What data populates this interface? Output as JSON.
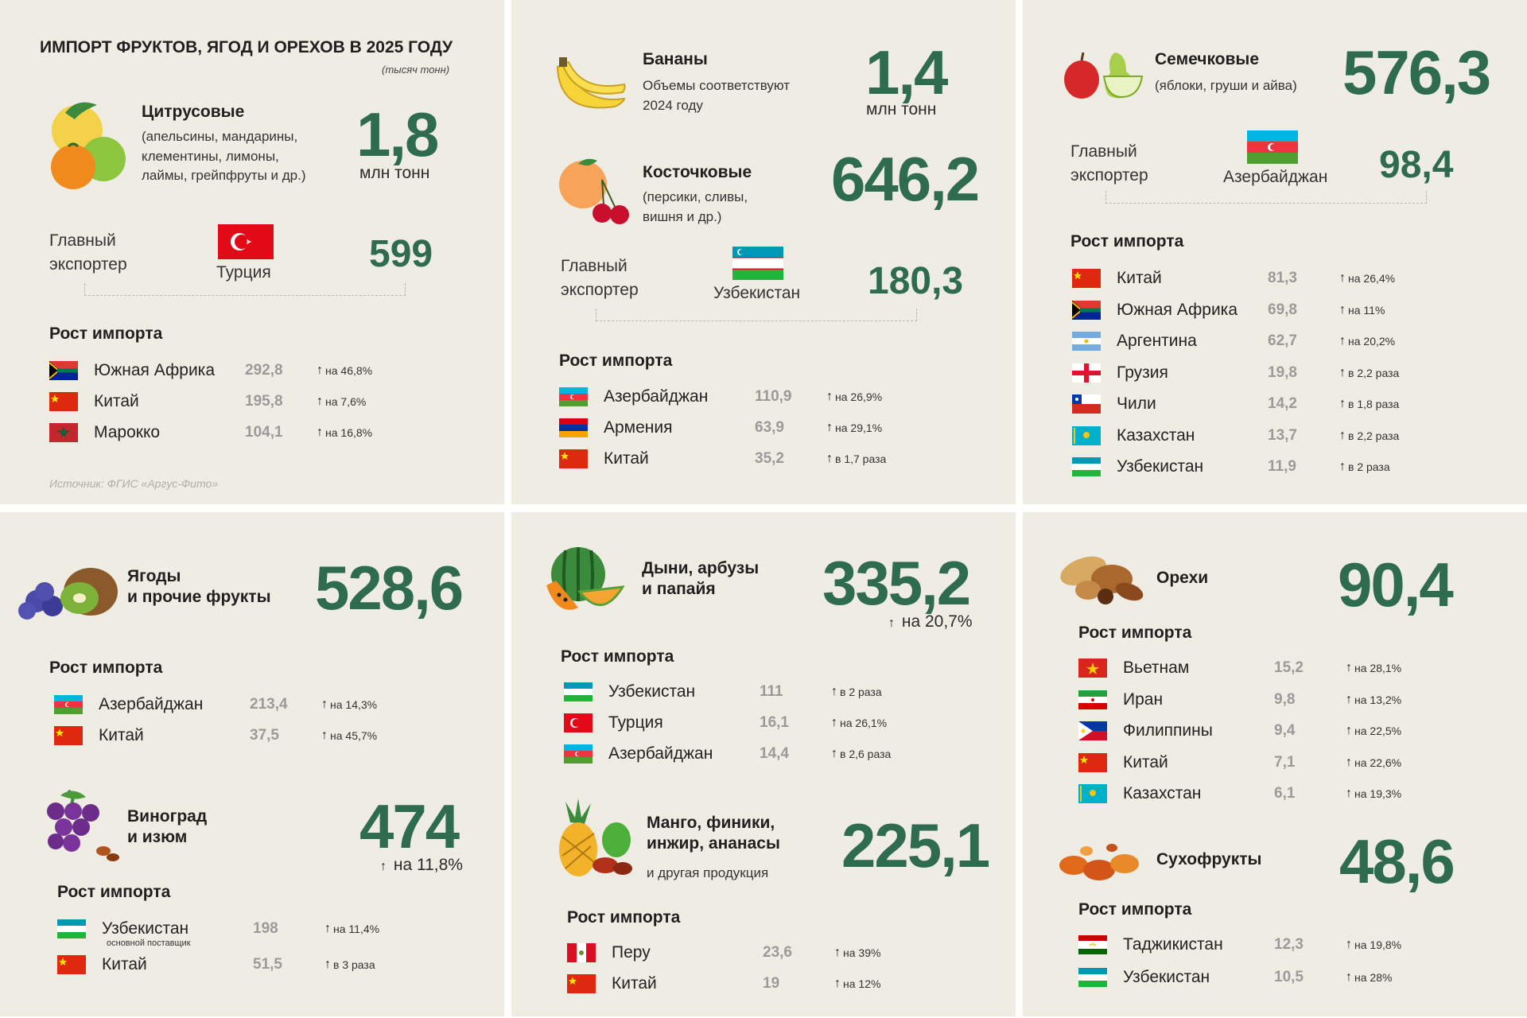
{
  "main_title": "ИМПОРТ ФРУКТОВ, ЯГОД И ОРЕХОВ В 2025 ГОДУ",
  "units_note": "(тысяч тонн)",
  "source": "Источник: ФГИС «Аргус-Фито»",
  "exporter_label_1": "Главный",
  "exporter_label_2": "экспортер",
  "growth_label": "Рост импорта",
  "colors": {
    "accent": "#2e6b4f",
    "panel": "#efece3",
    "muted": "#9a9a9a"
  },
  "citrus": {
    "title": "Цитрусовые",
    "desc": [
      "(апельсины, мандарины,",
      "клементины, лимоны,",
      "лаймы, грейпфруты и др.)"
    ],
    "value": "1,8",
    "unit": "млн тонн",
    "exporter_country": "Турция",
    "exporter_value": "599",
    "rows": [
      {
        "country": "Южная Африка",
        "value": "292,8",
        "growth": "на 46,8%",
        "flag": "za"
      },
      {
        "country": "Китай",
        "value": "195,8",
        "growth": "на 7,6%",
        "flag": "cn"
      },
      {
        "country": "Марокко",
        "value": "104,1",
        "growth": "на 16,8%",
        "flag": "ma"
      }
    ]
  },
  "bananas": {
    "title": "Бананы",
    "desc": [
      "Объемы соответствуют",
      "2024 году"
    ],
    "value": "1,4",
    "unit": "млн тонн"
  },
  "stone": {
    "title": "Косточковые",
    "desc": [
      "(персики, сливы,",
      "вишня и др.)"
    ],
    "value": "646,2",
    "exporter_country": "Узбекистан",
    "exporter_value": "180,3",
    "rows": [
      {
        "country": "Азербайджан",
        "value": "110,9",
        "growth": "на 26,9%",
        "flag": "az"
      },
      {
        "country": "Армения",
        "value": "63,9",
        "growth": "на 29,1%",
        "flag": "am"
      },
      {
        "country": "Китай",
        "value": "35,2",
        "growth": "в 1,7 раза",
        "flag": "cn"
      }
    ]
  },
  "pome": {
    "title": "Семечковые",
    "desc": "(яблоки, груши и айва)",
    "value": "576,3",
    "exporter_country": "Азербайджан",
    "exporter_value": "98,4",
    "rows": [
      {
        "country": "Китай",
        "value": "81,3",
        "growth": "на 26,4%",
        "flag": "cn"
      },
      {
        "country": "Южная Африка",
        "value": "69,8",
        "growth": "на 11%",
        "flag": "za"
      },
      {
        "country": "Аргентина",
        "value": "62,7",
        "growth": "на 20,2%",
        "flag": "ar"
      },
      {
        "country": "Грузия",
        "value": "19,8",
        "growth": "в 2,2 раза",
        "flag": "ge"
      },
      {
        "country": "Чили",
        "value": "14,2",
        "growth": "в 1,8 раза",
        "flag": "cl"
      },
      {
        "country": "Казахстан",
        "value": "13,7",
        "growth": "в 2,2 раза",
        "flag": "kz"
      },
      {
        "country": "Узбекистан",
        "value": "11,9",
        "growth": "в 2 раза",
        "flag": "uz"
      }
    ]
  },
  "berries": {
    "title": [
      "Ягоды",
      "и прочие фрукты"
    ],
    "value": "528,6",
    "rows": [
      {
        "country": "Азербайджан",
        "value": "213,4",
        "growth": "на 14,3%",
        "flag": "az"
      },
      {
        "country": "Китай",
        "value": "37,5",
        "growth": "на 45,7%",
        "flag": "cn"
      }
    ]
  },
  "grapes": {
    "title": [
      "Виноград",
      "и изюм"
    ],
    "value": "474",
    "growth": "на 11,8%",
    "rows": [
      {
        "country": "Узбекистан",
        "note": "основной поставщик",
        "value": "198",
        "growth": "на 11,4%",
        "flag": "uz"
      },
      {
        "country": "Китай",
        "value": "51,5",
        "growth": "в 3 раза",
        "flag": "cn"
      }
    ]
  },
  "melons": {
    "title": [
      "Дыни, арбузы",
      "и папайя"
    ],
    "value": "335,2",
    "growth": "на 20,7%",
    "rows": [
      {
        "country": "Узбекистан",
        "value": "111",
        "growth": "в 2 раза",
        "flag": "uz"
      },
      {
        "country": "Турция",
        "value": "16,1",
        "growth": "на 26,1%",
        "flag": "tr"
      },
      {
        "country": "Азербайджан",
        "value": "14,4",
        "growth": "в 2,6 раза",
        "flag": "az"
      }
    ]
  },
  "mango": {
    "title": [
      "Манго, финики,",
      "инжир, ананасы"
    ],
    "desc": "и другая продукция",
    "value": "225,1",
    "rows": [
      {
        "country": "Перу",
        "value": "23,6",
        "growth": "на 39%",
        "flag": "pe"
      },
      {
        "country": "Китай",
        "value": "19",
        "growth": "на 12%",
        "flag": "cn"
      }
    ]
  },
  "nuts": {
    "title": "Орехи",
    "value": "90,4",
    "rows": [
      {
        "country": "Вьетнам",
        "value": "15,2",
        "growth": "на 28,1%",
        "flag": "vn"
      },
      {
        "country": "Иран",
        "value": "9,8",
        "growth": "на 13,2%",
        "flag": "ir"
      },
      {
        "country": "Филиппины",
        "value": "9,4",
        "growth": "на 22,5%",
        "flag": "ph"
      },
      {
        "country": "Китай",
        "value": "7,1",
        "growth": "на 22,6%",
        "flag": "cn"
      },
      {
        "country": "Казахстан",
        "value": "6,1",
        "growth": "на 19,3%",
        "flag": "kz"
      }
    ]
  },
  "dried": {
    "title": "Сухофрукты",
    "value": "48,6",
    "rows": [
      {
        "country": "Таджикистан",
        "value": "12,3",
        "growth": "на 19,8%",
        "flag": "tj"
      },
      {
        "country": "Узбекистан",
        "value": "10,5",
        "growth": "на 28%",
        "flag": "uz"
      }
    ]
  }
}
